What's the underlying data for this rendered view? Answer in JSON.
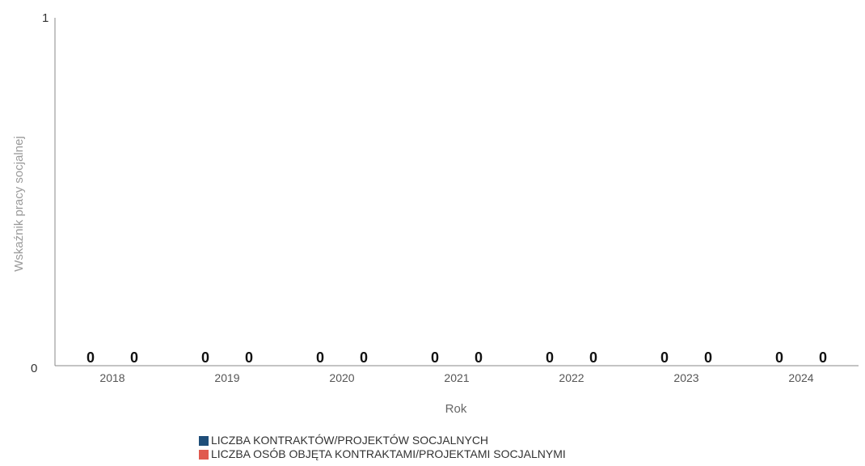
{
  "chart_data": {
    "type": "bar",
    "title": "",
    "xlabel": "Rok",
    "ylabel": "Wskaźnik pracy socjalnej",
    "ylim": [
      0,
      1
    ],
    "y_ticks": [
      "0",
      "1"
    ],
    "categories": [
      "2018",
      "2019",
      "2020",
      "2021",
      "2022",
      "2023",
      "2024"
    ],
    "series": [
      {
        "name": "LICZBA KONTRAKTÓW/PROJEKTÓW SOCJALNYCH",
        "color": "#1f4e79",
        "values": [
          0,
          0,
          0,
          0,
          0,
          0,
          0
        ]
      },
      {
        "name": "LICZBA OSÓB OBJĘTA KONTRAKTAMI/PROJEKTAMI SOCJALNYMI",
        "color": "#e05a4f",
        "values": [
          0,
          0,
          0,
          0,
          0,
          0,
          0
        ]
      }
    ],
    "data_labels": true,
    "grid": false,
    "legend_position": "bottom"
  }
}
